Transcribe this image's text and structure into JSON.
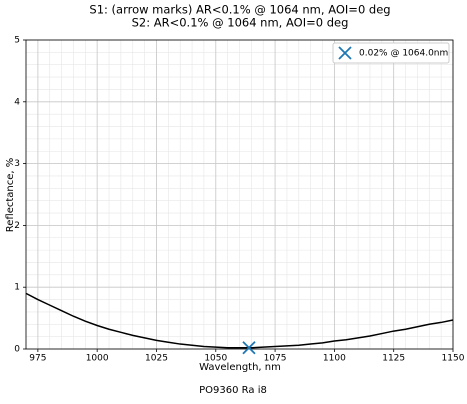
{
  "chart_data": {
    "type": "line",
    "title": "S1: (arrow marks) AR<0.1% @ 1064 nm, AOI=0 deg",
    "subtitle": "S2: AR<0.1% @ 1064 nm, AOI=0 deg",
    "x_label": "Wavelength, nm",
    "y_label": "Reflectance, %",
    "caption": "PO9360 Ra i8",
    "x": [
      970,
      975,
      980,
      985,
      990,
      995,
      1000,
      1005,
      1010,
      1015,
      1020,
      1025,
      1030,
      1035,
      1040,
      1045,
      1050,
      1055,
      1060,
      1065,
      1070,
      1075,
      1080,
      1085,
      1090,
      1095,
      1100,
      1105,
      1110,
      1115,
      1120,
      1125,
      1130,
      1135,
      1140,
      1145,
      1150
    ],
    "series": [
      {
        "color": "#000000",
        "values": [
          0.9,
          0.8,
          0.71,
          0.62,
          0.53,
          0.45,
          0.38,
          0.32,
          0.27,
          0.22,
          0.18,
          0.14,
          0.11,
          0.08,
          0.06,
          0.04,
          0.03,
          0.02,
          0.02,
          0.02,
          0.03,
          0.04,
          0.05,
          0.06,
          0.08,
          0.1,
          0.13,
          0.15,
          0.18,
          0.21,
          0.25,
          0.29,
          0.32,
          0.36,
          0.4,
          0.43,
          0.47
        ]
      }
    ],
    "markers": [
      {
        "name": "0.02% @ 1064.0nm",
        "color": "#1f77b4",
        "x": [
          1064
        ],
        "values": [
          0.02
        ]
      }
    ],
    "xlim": [
      970,
      1150
    ],
    "xticks": [
      975,
      1000,
      1025,
      1050,
      1075,
      1100,
      1125,
      1150
    ],
    "ylim": [
      0,
      5
    ],
    "yticks": [
      0,
      1,
      2,
      3,
      4,
      5
    ],
    "grid": true,
    "legend": "upper right"
  }
}
